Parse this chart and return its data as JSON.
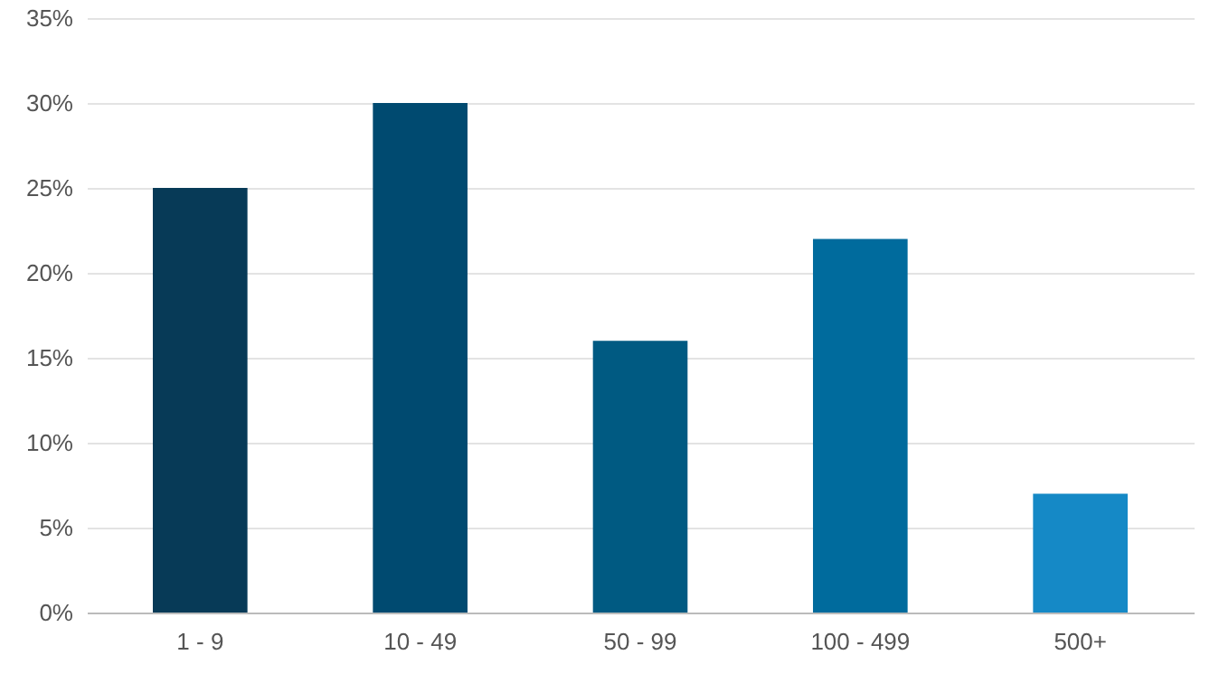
{
  "chart_data": {
    "type": "bar",
    "categories": [
      "1 - 9",
      "10 - 49",
      "50 - 99",
      "100 - 499",
      "500+"
    ],
    "values": [
      25,
      30,
      16,
      22,
      7
    ],
    "colors": [
      "#073a57",
      "#004a70",
      "#005a82",
      "#006b9d",
      "#1589c6"
    ],
    "ylim": [
      0,
      35
    ],
    "yticks": [
      {
        "value": 0,
        "label": "0%"
      },
      {
        "value": 5,
        "label": "5%"
      },
      {
        "value": 10,
        "label": "10%"
      },
      {
        "value": 15,
        "label": "15%"
      },
      {
        "value": 20,
        "label": "20%"
      },
      {
        "value": 25,
        "label": "25%"
      },
      {
        "value": 30,
        "label": "30%"
      },
      {
        "value": 35,
        "label": "35%"
      }
    ],
    "grid": "y"
  }
}
